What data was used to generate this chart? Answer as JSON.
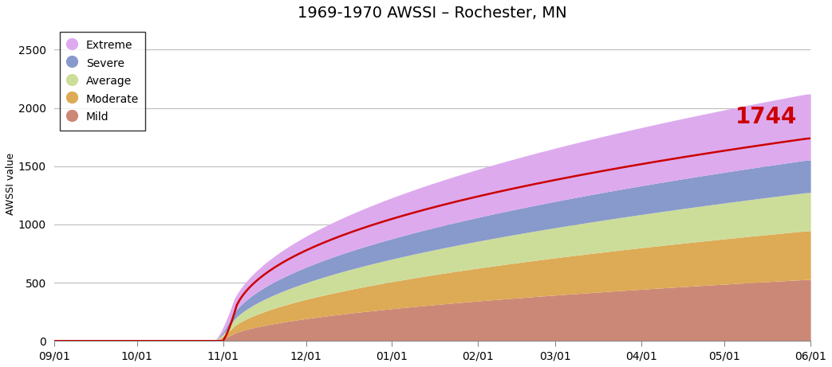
{
  "title": "1969-1970 AWSSI – Rochester, MN",
  "ylabel": "AWSSI value",
  "ylim": [
    0,
    2700
  ],
  "yticks": [
    0,
    500,
    1000,
    1500,
    2000,
    2500
  ],
  "background_color": "#ffffff",
  "band_colors": {
    "extreme": "#DDAAEE",
    "severe": "#8899CC",
    "average": "#CCDD99",
    "moderate": "#DDAA55",
    "mild": "#CC8877"
  },
  "actual_color": "#CC0000",
  "annotation_value": "1744",
  "annotation_color": "#CC0000",
  "x_tick_labels": [
    "09/01",
    "10/01",
    "11/01",
    "12/01",
    "01/01",
    "02/01",
    "03/01",
    "04/01",
    "05/01",
    "06/01"
  ],
  "legend_labels": [
    "Extreme",
    "Severe",
    "Average",
    "Moderate",
    "Mild"
  ],
  "grid_color": "#bbbbbb",
  "num_points": 274,
  "month_starts": [
    0,
    30,
    61,
    91,
    122,
    153,
    181,
    212,
    242,
    273
  ],
  "band_finals": {
    "mild": 530,
    "moderate": 950,
    "average": 1280,
    "severe": 1560,
    "extreme": 2130
  },
  "actual_final": 1744
}
